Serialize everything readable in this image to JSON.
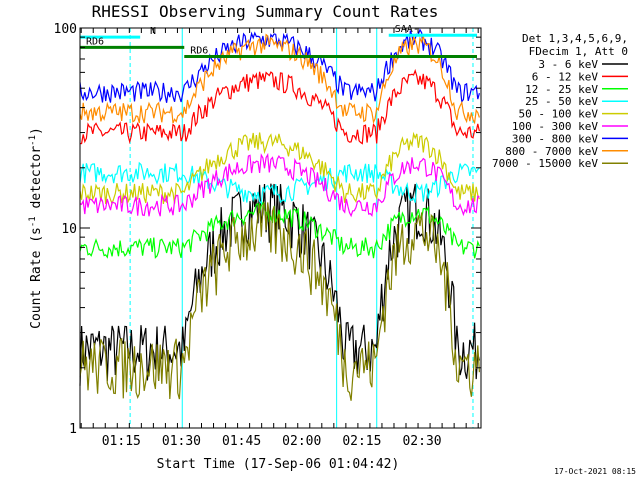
{
  "chart_data": {
    "type": "line",
    "title": "RHESSI Observing Summary Count Rates",
    "xlabel": "Start Time (17-Sep-06 01:04:42)",
    "ylabel_prefix": "Count Rate (s",
    "ylabel_sup": "-1",
    "ylabel_suffix": " detector",
    "ylabel_end": ")",
    "y_scale": "log",
    "ylim": [
      1,
      100
    ],
    "xlim_minutes": [
      0,
      100
    ],
    "y_ticks": [
      {
        "value": 1,
        "label": "1"
      },
      {
        "value": 10,
        "label": "10"
      },
      {
        "value": 100,
        "label": "100"
      }
    ],
    "x_ticks": [
      {
        "minute": 10.3,
        "label": "01:15"
      },
      {
        "minute": 25.3,
        "label": "01:30"
      },
      {
        "minute": 40.3,
        "label": "01:45"
      },
      {
        "minute": 55.3,
        "label": "02:00"
      },
      {
        "minute": 70.3,
        "label": "02:15"
      },
      {
        "minute": 85.3,
        "label": "02:30"
      }
    ],
    "legend_header": [
      "Det 1,3,4,5,6,9,",
      "FDecim 1, Att 0"
    ],
    "series": [
      {
        "name": "3 - 6 keV",
        "color": "#000000",
        "night": 2.5,
        "day": 13
      },
      {
        "name": "6 - 12 keV",
        "color": "#ff0000",
        "night": 30,
        "day": 55
      },
      {
        "name": "12 - 25 keV",
        "color": "#00ff00",
        "night": 8,
        "day": 12
      },
      {
        "name": "25 - 50 keV",
        "color": "#00ffff",
        "night": 19,
        "day": 15
      },
      {
        "name": "50 - 100 keV",
        "color": "#cccc00",
        "night": 15,
        "day": 27
      },
      {
        "name": "100 - 300 keV",
        "color": "#ff00ff",
        "night": 13,
        "day": 21
      },
      {
        "name": "300 - 800 keV",
        "color": "#0000ff",
        "night": 48,
        "day": 88
      },
      {
        "name": "800 - 7000 keV",
        "color": "#ff8c00",
        "night": 38,
        "day": 83
      },
      {
        "name": "7000 - 15000 keV",
        "color": "#808000",
        "night": 2.1,
        "day": 10
      }
    ],
    "day_passes_minutes": [
      [
        26,
        46,
        66
      ],
      [
        74,
        84,
        94
      ]
    ],
    "night_segments_minutes": [
      [
        0,
        26
      ],
      [
        46,
        64
      ]
    ],
    "flags": [
      {
        "label": "N",
        "color": "#00ffff",
        "start": 0,
        "end": 15,
        "level": 90
      },
      {
        "label": "SAA-",
        "color": "#00ffff",
        "start": 77,
        "end": 99,
        "level": 92
      },
      {
        "label": "RD6",
        "color": "#008000",
        "start": 0,
        "end": 26,
        "level": 80
      },
      {
        "label": "RD6",
        "color": "#008000",
        "start": 26,
        "end": 99,
        "level": 72
      }
    ],
    "footer": "17-Oct-2021 08:15"
  }
}
